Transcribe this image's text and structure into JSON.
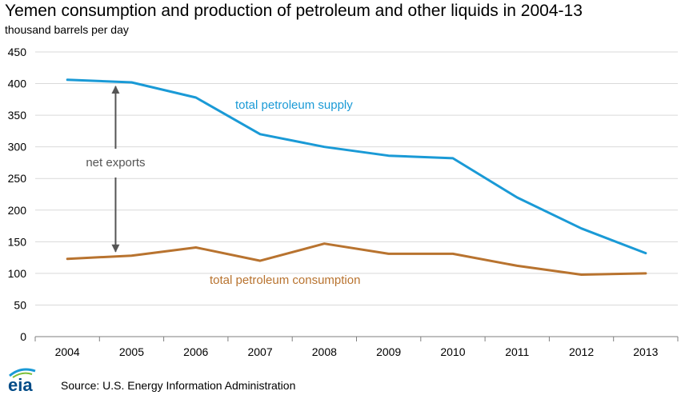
{
  "title": "Yemen consumption and production of petroleum and other liquids in 2004-13",
  "subtitle": "thousand barrels per day",
  "source": "Source: U.S. Energy Information Administration",
  "logo_text": "eia",
  "colors": {
    "supply": "#1a9ad6",
    "consumption": "#b8732f",
    "arrow": "#555555",
    "grid": "#d9d9d9",
    "axis": "#7f7f7f",
    "logo_text": "#004b87",
    "logo_accent": "#1a9ad6",
    "logo_green": "#7cbf3a"
  },
  "chart_data": {
    "type": "line",
    "x": [
      "2004",
      "2005",
      "2006",
      "2007",
      "2008",
      "2009",
      "2010",
      "2011",
      "2012",
      "2013"
    ],
    "ylim": [
      0,
      450
    ],
    "yticks": [
      0,
      50,
      100,
      150,
      200,
      250,
      300,
      350,
      400,
      450
    ],
    "grid": true,
    "series": [
      {
        "name": "total petroleum supply",
        "values": [
          406,
          402,
          378,
          320,
          300,
          286,
          282,
          220,
          171,
          132
        ]
      },
      {
        "name": "total petroleum consumption",
        "values": [
          123,
          128,
          141,
          120,
          147,
          131,
          131,
          112,
          98,
          100
        ]
      }
    ],
    "annotations": [
      {
        "text": "net exports",
        "x_year": "2005",
        "y_from": 402,
        "y_to": 128
      }
    ]
  }
}
